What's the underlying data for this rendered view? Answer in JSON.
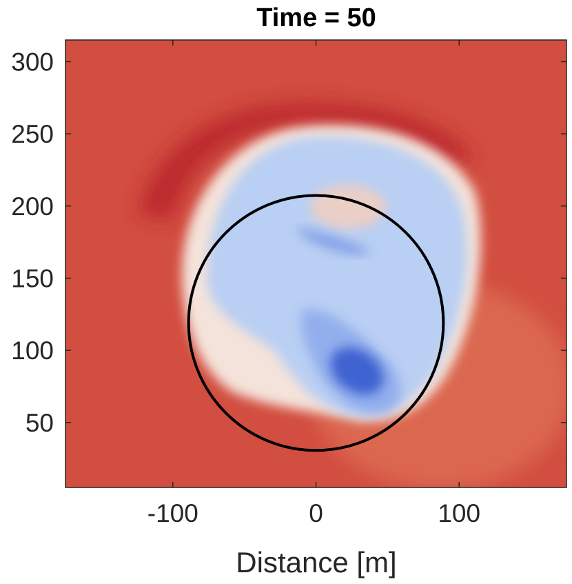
{
  "chart_data": {
    "type": "heatmap",
    "title": "Time = 50",
    "xlabel": "Distance [m]",
    "ylabel": "",
    "xlim": [
      -175,
      175
    ],
    "ylim": [
      5,
      315
    ],
    "x_ticks": [
      -100,
      0,
      100
    ],
    "x_tick_labels": [
      "-100",
      "0",
      "100"
    ],
    "y_ticks": [
      50,
      100,
      150,
      200,
      250,
      300
    ],
    "y_tick_labels": [
      "50",
      "100",
      "150",
      "200",
      "250",
      "300"
    ],
    "grid": false,
    "legend": "none",
    "colormap": "blue-white-red (diverging)",
    "colors": {
      "background_red": "#d24e40",
      "dark_red": "#b8202b",
      "light_blue": "#b9cff3",
      "dark_blue": "#3b5ed0",
      "near_white": "#f2e4dc",
      "circle": "#000000"
    },
    "overlay_circle": {
      "center_x": 0,
      "center_y": 119,
      "radius": 89
    },
    "features": [
      {
        "kind": "blue region",
        "center": [
          10,
          140
        ],
        "extent": "approx x from -90 to 110, y from 45 to 260"
      },
      {
        "kind": "dark blue minimum",
        "center": [
          30,
          80
        ]
      },
      {
        "kind": "dark red band",
        "center": [
          -60,
          260
        ]
      }
    ]
  }
}
